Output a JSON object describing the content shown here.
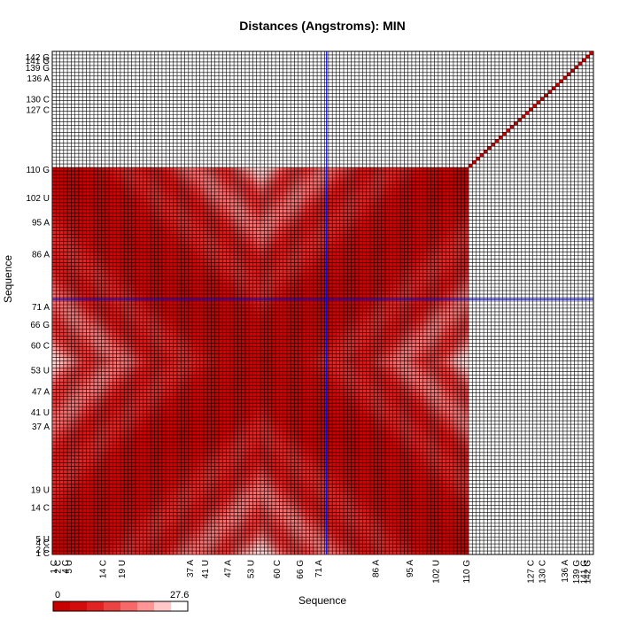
{
  "chart_data": {
    "type": "heatmap",
    "title": "Distances (Angstroms):  MIN",
    "xlabel": "Sequence",
    "ylabel": "Sequence",
    "n_residues": 143,
    "tick_labels": {
      "first": "1 C",
      "last": "142 G",
      "visible_y_samples": [
        "142 G",
        "141 G",
        "139 G",
        "136 A",
        "130 C",
        "127 C",
        "110 G",
        "102 U",
        "95 A",
        "86 A",
        "71 A",
        "66 G",
        "60 C",
        "53 U",
        "47 A",
        "41 U",
        "37 A",
        "19 U",
        "14 C",
        "5 U",
        "4 C",
        "2 C",
        "1 C"
      ]
    },
    "data_region": {
      "residue_range": [
        1,
        110
      ],
      "note": "distance matrix populated for residues 1-110; remaining cells empty"
    },
    "colormap": {
      "min_value": 0,
      "max_value": 27.6,
      "min_color": "#ff0000",
      "max_color": "#ffffff"
    },
    "crosshair": {
      "x_residue": 73,
      "y_residue": 73,
      "color": "#0000ff"
    },
    "legend": {
      "min_label": "0",
      "max_label": "27.6",
      "position": "bottom-left"
    }
  }
}
